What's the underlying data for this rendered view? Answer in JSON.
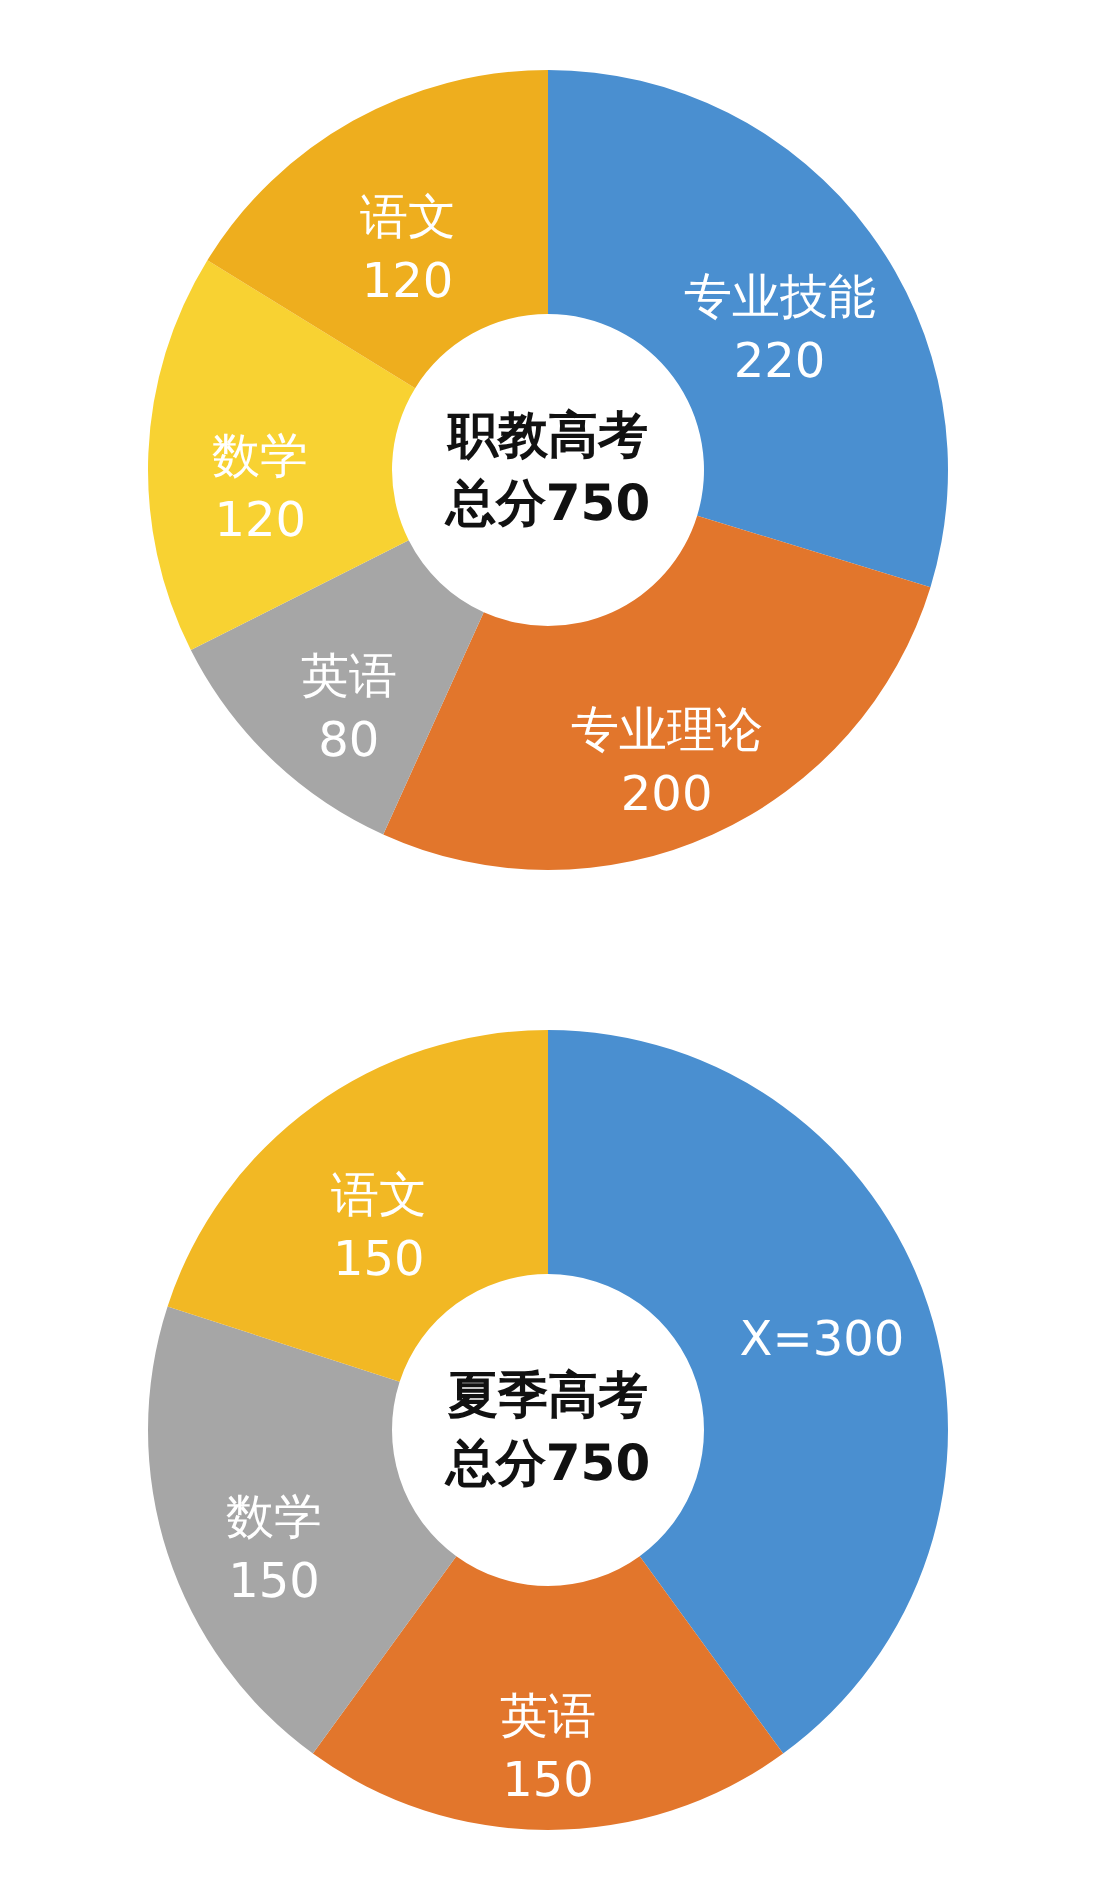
{
  "chart_data": [
    {
      "type": "donut",
      "title": "职教高考",
      "subtitle": "总分750",
      "categories": [
        "专业技能",
        "专业理论",
        "英语",
        "数学",
        "语文"
      ],
      "values": [
        220,
        200,
        80,
        120,
        120
      ],
      "colors": [
        "#4a8fd0",
        "#e2762c",
        "#a6a6a6",
        "#f8d232",
        "#eeae1e"
      ],
      "value_labels": [
        "220",
        "200",
        "80",
        "120",
        "120"
      ],
      "legend": false
    },
    {
      "type": "donut",
      "title": "夏季高考",
      "subtitle": "总分750",
      "categories": [
        null,
        "英语",
        "数学",
        "语文"
      ],
      "values": [
        300,
        150,
        150,
        150
      ],
      "colors": [
        "#4a8fd0",
        "#e2762c",
        "#a6a6a6",
        "#f2b824"
      ],
      "value_labels": [
        "X=300",
        "150",
        "150",
        "150"
      ],
      "legend": false
    }
  ]
}
